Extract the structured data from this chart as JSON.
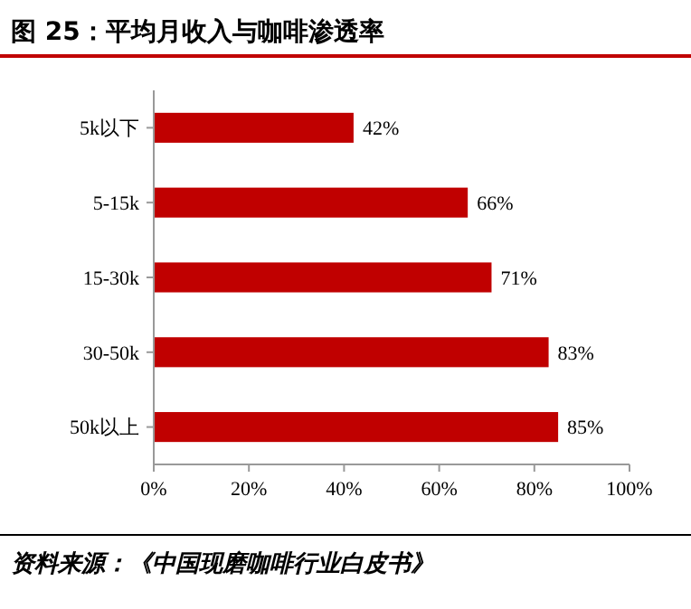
{
  "chart_data": {
    "type": "bar",
    "orientation": "horizontal",
    "title": "图 25：平均月收入与咖啡渗透率",
    "categories": [
      "5k以下",
      "5-15k",
      "15-30k",
      "30-50k",
      "50k以上"
    ],
    "values": [
      42,
      66,
      71,
      83,
      85
    ],
    "value_labels": [
      "42%",
      "66%",
      "71%",
      "83%",
      "85%"
    ],
    "color": "#c00000",
    "xlim": [
      0,
      100
    ],
    "xticks": [
      {
        "value": 0,
        "label": "0%"
      },
      {
        "value": 20,
        "label": "20%"
      },
      {
        "value": 40,
        "label": "40%"
      },
      {
        "value": 60,
        "label": "60%"
      },
      {
        "value": 80,
        "label": "80%"
      },
      {
        "value": 100,
        "label": "100%"
      }
    ],
    "grid": false,
    "annotations": [
      "资料来源：《中国现磨咖啡行业白皮书》"
    ]
  }
}
